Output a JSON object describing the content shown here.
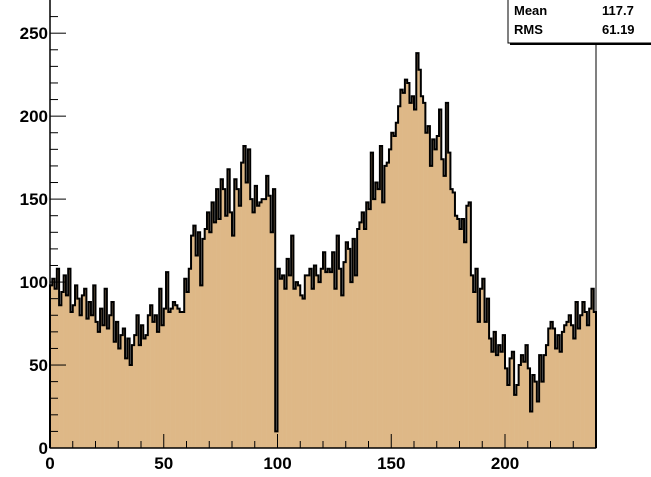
{
  "chart_data": {
    "type": "bar",
    "title": "",
    "xlabel": "",
    "ylabel": "",
    "xlim": [
      0,
      240
    ],
    "ylim": [
      0,
      270
    ],
    "x_ticks": [
      0,
      50,
      100,
      150,
      200
    ],
    "y_ticks": [
      0,
      50,
      100,
      150,
      200,
      250
    ],
    "grid": false,
    "bin_width": 1,
    "fill_color": "#deb887",
    "line_color": "#000000",
    "stats_box": {
      "rows": [
        {
          "label": "Mean",
          "value": "117.7"
        },
        {
          "label": "RMS",
          "value": "61.19"
        }
      ]
    },
    "values": [
      98,
      102,
      96,
      108,
      86,
      94,
      104,
      92,
      108,
      82,
      86,
      98,
      90,
      80,
      92,
      96,
      78,
      88,
      80,
      98,
      76,
      70,
      84,
      74,
      96,
      72,
      80,
      88,
      64,
      76,
      60,
      68,
      72,
      54,
      66,
      50,
      62,
      68,
      80,
      62,
      74,
      66,
      68,
      80,
      86,
      76,
      80,
      70,
      96,
      74,
      84,
      106,
      82,
      84,
      88,
      86,
      84,
      82,
      82,
      102,
      94,
      108,
      128,
      134,
      116,
      130,
      98,
      126,
      132,
      142,
      130,
      148,
      136,
      156,
      138,
      162,
      156,
      140,
      168,
      142,
      128,
      162,
      156,
      146,
      172,
      182,
      160,
      180,
      150,
      142,
      158,
      146,
      148,
      150,
      150,
      164,
      152,
      130,
      156,
      10,
      108,
      102,
      104,
      96,
      114,
      104,
      128,
      96,
      100,
      98,
      92,
      90,
      104,
      104,
      108,
      96,
      110,
      104,
      100,
      108,
      118,
      106,
      108,
      106,
      118,
      96,
      128,
      108,
      92,
      112,
      124,
      120,
      100,
      126,
      104,
      132,
      136,
      142,
      132,
      148,
      144,
      178,
      150,
      160,
      156,
      182,
      148,
      170,
      172,
      180,
      190,
      188,
      196,
      206,
      216,
      214,
      222,
      220,
      208,
      212,
      204,
      238,
      228,
      212,
      208,
      190,
      194,
      170,
      186,
      180,
      188,
      204,
      174,
      164,
      208,
      178,
      156,
      154,
      140,
      138,
      132,
      138,
      124,
      146,
      148,
      104,
      94,
      108,
      76,
      96,
      102,
      76,
      90,
      66,
      58,
      70,
      56,
      62,
      58,
      68,
      48,
      38,
      54,
      58,
      32,
      38,
      50,
      56,
      52,
      62,
      48,
      22,
      44,
      40,
      28,
      56,
      40,
      56,
      62,
      72,
      76,
      72,
      60,
      68,
      58,
      70,
      74,
      76,
      80,
      74,
      66,
      88,
      72,
      80,
      88,
      82,
      74,
      84,
      96,
      82
    ]
  }
}
